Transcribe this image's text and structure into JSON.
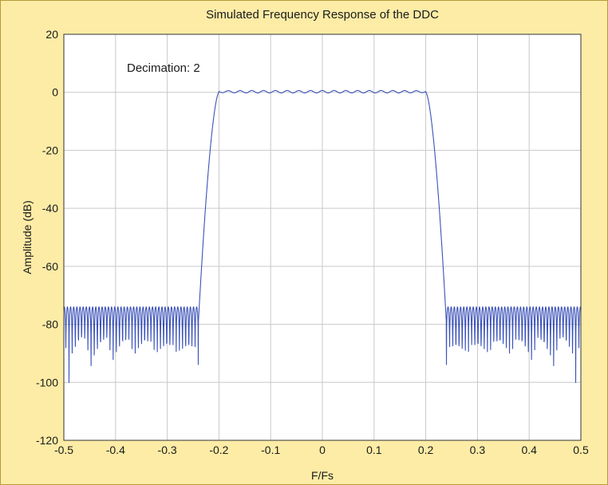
{
  "chart_data": {
    "type": "line",
    "title": "Simulated Frequency Response of the DDC",
    "xlabel": "F/Fs",
    "ylabel": "Amplitude (dB)",
    "annotation": "Decimation: 2",
    "xlim": [
      -0.5,
      0.5
    ],
    "ylim": [
      -120,
      20
    ],
    "x_ticks": [
      -0.5,
      -0.4,
      -0.3,
      -0.2,
      -0.1,
      0,
      0.1,
      0.2,
      0.3,
      0.4,
      0.5
    ],
    "x_tick_labels": [
      "-0.5",
      "-0.4",
      "-0.3",
      "-0.2",
      "-0.1",
      "0",
      "0.1",
      "0.2",
      "0.3",
      "0.4",
      "0.5"
    ],
    "y_ticks": [
      20,
      0,
      -20,
      -40,
      -60,
      -80,
      -100,
      -120
    ],
    "y_tick_labels": [
      "20",
      "0",
      "-20",
      "-40",
      "-60",
      "-80",
      "-100",
      "-120"
    ],
    "grid": true,
    "line_color": "#3b52b8",
    "plot_bg": "#ffffff",
    "figure_bg": "#fdeca6",
    "passband_edge": 0.2,
    "stopband_edge": 0.24,
    "passband_ripple_db": 0.7,
    "stopband_peak_db": -74,
    "stopband_min_db": -109,
    "key_points": [
      {
        "x": -0.5,
        "y": -86
      },
      {
        "x": -0.24,
        "y": -74
      },
      {
        "x": -0.215,
        "y": -20
      },
      {
        "x": -0.2,
        "y": 0
      },
      {
        "x": 0,
        "y": 0
      },
      {
        "x": 0.2,
        "y": 0
      },
      {
        "x": 0.215,
        "y": -20
      },
      {
        "x": 0.24,
        "y": -74
      },
      {
        "x": 0.5,
        "y": -86
      }
    ]
  }
}
